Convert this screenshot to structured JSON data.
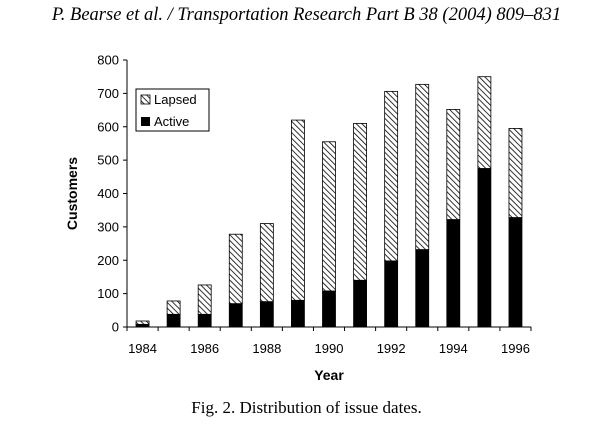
{
  "header": {
    "running_head": "P. Bearse et al. / Transportation Research Part B 38 (2004) 809–831"
  },
  "figure": {
    "caption": "Fig. 2. Distribution of issue dates."
  },
  "chart_data": {
    "type": "bar",
    "stacked": true,
    "title": "",
    "xlabel": "Year",
    "ylabel": "Customers",
    "ylim": [
      0,
      800
    ],
    "yticks": [
      0,
      100,
      200,
      300,
      400,
      500,
      600,
      700,
      800
    ],
    "xtick_labels": [
      "1984",
      "1986",
      "1988",
      "1990",
      "1992",
      "1994",
      "1996"
    ],
    "categories": [
      "1984",
      "1985",
      "1986",
      "1987",
      "1988",
      "1989",
      "1990",
      "1991",
      "1992",
      "1993",
      "1994",
      "1995",
      "1996"
    ],
    "series": [
      {
        "name": "Active",
        "color": "#000000",
        "values": [
          8,
          38,
          38,
          70,
          76,
          80,
          108,
          140,
          198,
          232,
          322,
          475,
          328
        ]
      },
      {
        "name": "Lapsed",
        "color": "hatched",
        "values": [
          10,
          40,
          88,
          208,
          234,
          540,
          447,
          470,
          508,
          495,
          330,
          275,
          267
        ]
      }
    ],
    "legend": {
      "position": "top-left",
      "entries": [
        "Lapsed",
        "Active"
      ]
    },
    "grid": false
  }
}
